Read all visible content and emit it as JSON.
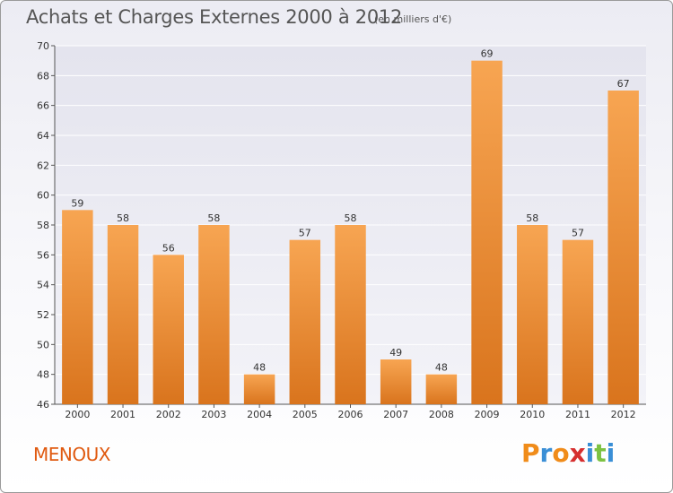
{
  "chart_data": {
    "type": "bar",
    "title": "Achats et Charges Externes 2000 à 2012",
    "subtitle": "(en milliers d'€)",
    "categories": [
      "2000",
      "2001",
      "2002",
      "2003",
      "2004",
      "2005",
      "2006",
      "2007",
      "2008",
      "2009",
      "2010",
      "2011",
      "2012"
    ],
    "values": [
      59,
      58,
      56,
      58,
      48,
      57,
      58,
      49,
      48,
      69,
      58,
      57,
      67
    ],
    "ylim": [
      46,
      70
    ],
    "yticks": [
      46,
      48,
      50,
      52,
      54,
      56,
      58,
      60,
      62,
      64,
      66,
      68,
      70
    ],
    "grid": true,
    "bar_color": "#f0953a",
    "xlabel": "",
    "ylabel": ""
  },
  "footer": {
    "commune": "MENOUX",
    "logo": "Proxiti"
  },
  "colors": {
    "title": "#555555",
    "commune": "#e05a10",
    "logo_letters": [
      "#f08c1a",
      "#3a8fd6",
      "#f08c1a",
      "#d62f2f",
      "#3a8fd6",
      "#7cc242",
      "#3a8fd6"
    ]
  }
}
